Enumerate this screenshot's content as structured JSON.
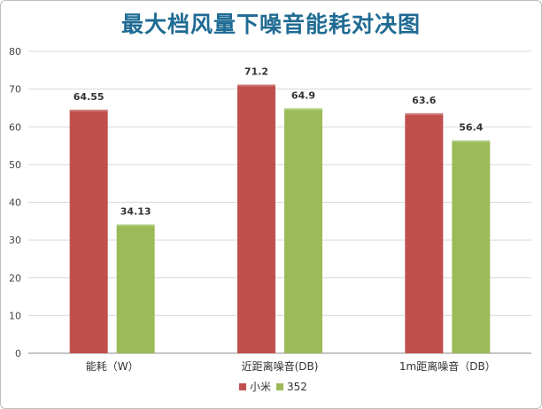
{
  "chart_data": {
    "type": "bar",
    "title": "最大档风量下噪音能耗对决图",
    "categories": [
      "能耗（W）",
      "近距离噪音(DB)",
      "1m距离噪音（DB）"
    ],
    "series": [
      {
        "name": "小米",
        "values": [
          64.55,
          71.2,
          63.6
        ],
        "color": "#c0504d"
      },
      {
        "name": "352",
        "values": [
          34.13,
          64.9,
          56.4
        ],
        "color": "#9bbb59"
      }
    ],
    "data_labels": [
      [
        "64.55",
        "71.2",
        "63.6"
      ],
      [
        "34.13",
        "64.9",
        "56.4"
      ]
    ],
    "yticks": [
      "0",
      "10",
      "20",
      "30",
      "40",
      "50",
      "60",
      "70",
      "80"
    ],
    "ylim": [
      0,
      80
    ],
    "grid": true,
    "legend_position": "bottom"
  }
}
